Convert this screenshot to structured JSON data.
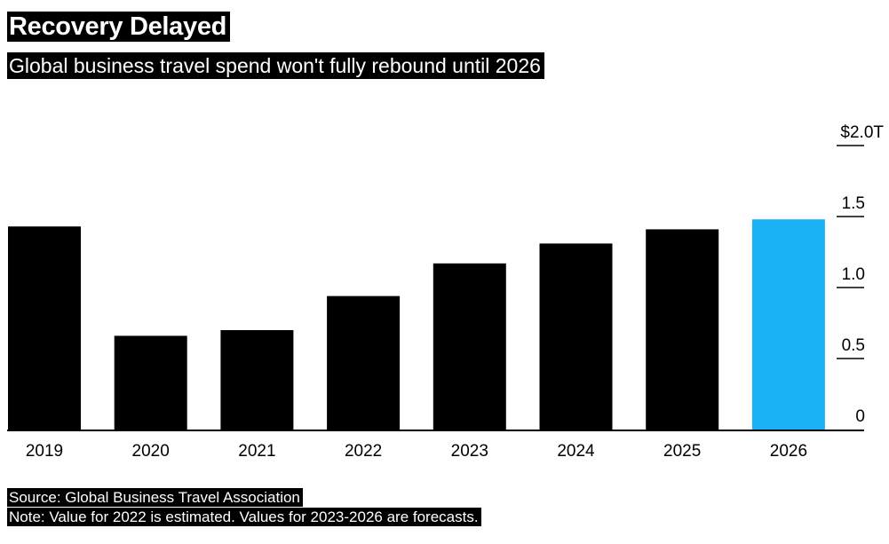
{
  "title": "Recovery Delayed",
  "subtitle": "Global business travel spend won't fully rebound until 2026",
  "source": "Source: Global Business Travel Association",
  "note": "Note: Value for 2022 is estimated. Values for 2023-2026 are forecasts.",
  "chart_data": {
    "type": "bar",
    "categories": [
      "2019",
      "2020",
      "2021",
      "2022",
      "2023",
      "2024",
      "2025",
      "2026"
    ],
    "values": [
      1.43,
      0.66,
      0.7,
      0.94,
      1.17,
      1.31,
      1.41,
      1.48
    ],
    "ylim": [
      0,
      2.0
    ],
    "yticks": [
      {
        "value": 0,
        "label": "0"
      },
      {
        "value": 0.5,
        "label": "0.5"
      },
      {
        "value": 1.0,
        "label": "1.0"
      },
      {
        "value": 1.5,
        "label": "1.5"
      },
      {
        "value": 2.0,
        "label": "$2.0T"
      }
    ],
    "colors": {
      "default": "#000000",
      "highlight": "#1ab2f5"
    },
    "highlight_category": "2026",
    "title": "Recovery Delayed",
    "xlabel": "",
    "ylabel": "",
    "grid": false
  }
}
